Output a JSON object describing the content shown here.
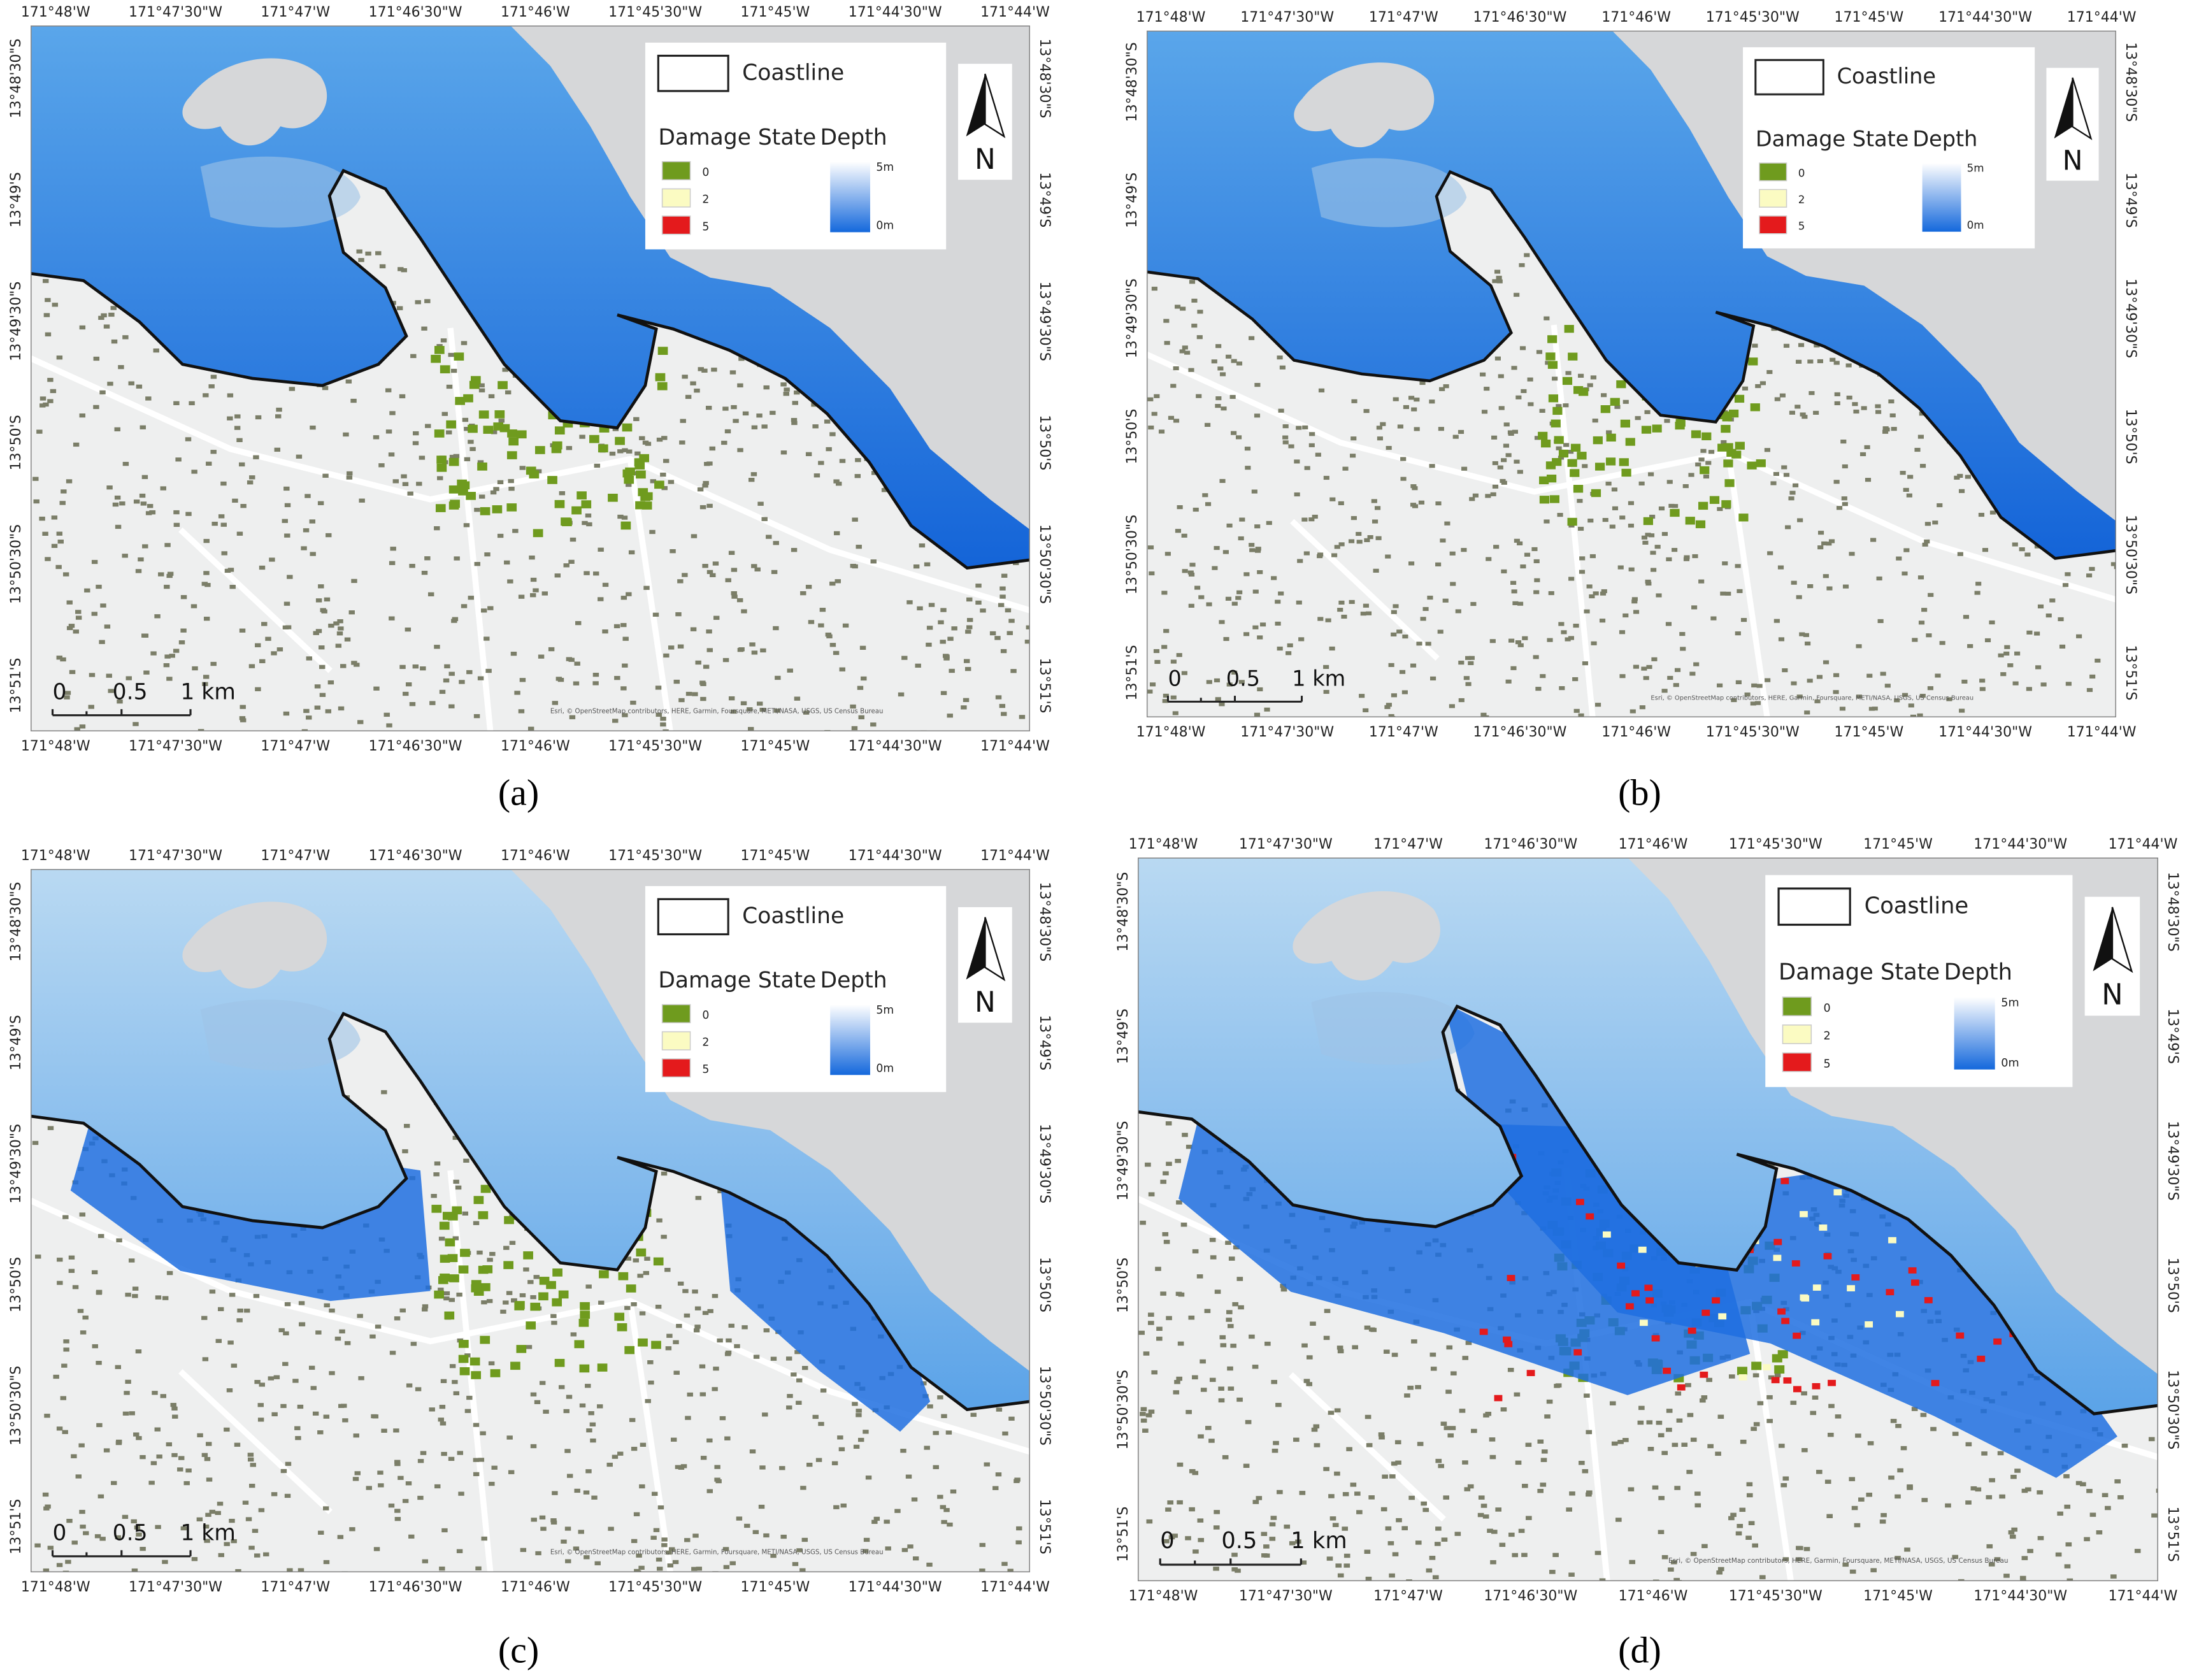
{
  "panels": [
    {
      "caption": "(a)",
      "top_labels": [
        "171°48'W",
        "171°47'30\"W",
        "171°47'W",
        "171°46'30\"W",
        "171°46'W",
        "171°45'30\"W",
        "171°45'W",
        "171°44'30\"W",
        "171°44'W"
      ],
      "bottom_labels": [
        "171°48'W",
        "171°47'30\"W",
        "171°47'W",
        "171°46'30\"W",
        "171°46'W",
        "171°45'30\"W",
        "171°45'W",
        "171°44'30\"W",
        "171°44'W"
      ],
      "left_labels": [
        "13°48'30\"S",
        "13°49'S",
        "13°49'30\"S",
        "13°50'S",
        "13°50'30\"S",
        "13°51'S"
      ],
      "right_labels": [
        "13°48'30\"S",
        "13°49'S",
        "13°49'30\"S",
        "13°50'S",
        "13°50'30\"S",
        "13°51'S"
      ],
      "legend": {
        "coastline": "Coastline",
        "damage_state": "Damage State",
        "depth": "Depth",
        "damage_levels": [
          "0",
          "2",
          "5"
        ],
        "damage_colors": [
          "#6f9b1e",
          "#fbfbc2",
          "#e41a1c"
        ],
        "depth_max": "5m",
        "depth_min": "0m"
      },
      "north": "N",
      "scale_bar": [
        "0",
        "0.5",
        "1 km"
      ],
      "attribution": "Esri, © OpenStreetMap contributors, HERE, Garmin, Foursquare, METI/NASA, USGS, US Census Bureau"
    },
    {
      "caption": "(b)",
      "top_labels": [
        "171°48'W",
        "171°47'30\"W",
        "171°47'W",
        "171°46'30\"W",
        "171°46'W",
        "171°45'30\"W",
        "171°45'W",
        "171°44'30\"W",
        "171°44'W"
      ],
      "bottom_labels": [
        "171°48'W",
        "171°47'30\"W",
        "171°47'W",
        "171°46'30\"W",
        "171°46'W",
        "171°45'30\"W",
        "171°45'W",
        "171°44'30\"W",
        "171°44'W"
      ],
      "left_labels": [
        "13°48'30\"S",
        "13°49'S",
        "13°49'30\"S",
        "13°50'S",
        "13°50'30\"S",
        "13°51'S"
      ],
      "right_labels": [
        "13°48'30\"S",
        "13°49'S",
        "13°49'30\"S",
        "13°50'S",
        "13°50'30\"S",
        "13°51'S"
      ],
      "legend": {
        "coastline": "Coastline",
        "damage_state": "Damage State",
        "depth": "Depth",
        "damage_levels": [
          "0",
          "2",
          "5"
        ],
        "damage_colors": [
          "#6f9b1e",
          "#fbfbc2",
          "#e41a1c"
        ],
        "depth_max": "5m",
        "depth_min": "0m"
      },
      "north": "N",
      "scale_bar": [
        "0",
        "0.5",
        "1 km"
      ],
      "attribution": "Esri, © OpenStreetMap contributors, HERE, Garmin, Foursquare, METI/NASA, USGS, US Census Bureau"
    },
    {
      "caption": "(c)",
      "top_labels": [
        "171°48'W",
        "171°47'30\"W",
        "171°47'W",
        "171°46'30\"W",
        "171°46'W",
        "171°45'30\"W",
        "171°45'W",
        "171°44'30\"W",
        "171°44'W"
      ],
      "bottom_labels": [
        "171°48'W",
        "171°47'30\"W",
        "171°47'W",
        "171°46'30\"W",
        "171°46'W",
        "171°45'30\"W",
        "171°45'W",
        "171°44'30\"W",
        "171°44'W"
      ],
      "left_labels": [
        "13°48'30\"S",
        "13°49'S",
        "13°49'30\"S",
        "13°50'S",
        "13°50'30\"S",
        "13°51'S"
      ],
      "right_labels": [
        "13°48'30\"S",
        "13°49'S",
        "13°49'30\"S",
        "13°50'S",
        "13°50'30\"S",
        "13°51'S"
      ],
      "legend": {
        "coastline": "Coastline",
        "damage_state": "Damage State",
        "depth": "Depth",
        "damage_levels": [
          "0",
          "2",
          "5"
        ],
        "damage_colors": [
          "#6f9b1e",
          "#fbfbc2",
          "#e41a1c"
        ],
        "depth_max": "5m",
        "depth_min": "0m"
      },
      "north": "N",
      "scale_bar": [
        "0",
        "0.5",
        "1 km"
      ],
      "attribution": "Esri, © OpenStreetMap contributors, HERE, Garmin, Foursquare, METI/NASA, USGS, US Census Bureau"
    },
    {
      "caption": "(d)",
      "top_labels": [
        "171°48'W",
        "171°47'30\"W",
        "171°47'W",
        "171°46'30\"W",
        "171°46'W",
        "171°45'30\"W",
        "171°45'W",
        "171°44'30\"W",
        "171°44'W"
      ],
      "bottom_labels": [
        "171°48'W",
        "171°47'30\"W",
        "171°47'W",
        "171°46'30\"W",
        "171°46'W",
        "171°45'30\"W",
        "171°45'W",
        "171°44'30\"W",
        "171°44'W"
      ],
      "left_labels": [
        "13°48'30\"S",
        "13°49'S",
        "13°49'30\"S",
        "13°50'S",
        "13°50'30\"S",
        "13°51'S"
      ],
      "right_labels": [
        "13°48'30\"S",
        "13°49'S",
        "13°49'30\"S",
        "13°50'S",
        "13°50'30\"S",
        "13°51'S"
      ],
      "legend": {
        "coastline": "Coastline",
        "damage_state": "Damage State",
        "depth": "Depth",
        "damage_levels": [
          "0",
          "2",
          "5"
        ],
        "damage_colors": [
          "#6f9b1e",
          "#fbfbc2",
          "#e41a1c"
        ],
        "depth_max": "5m",
        "depth_min": "0m"
      },
      "north": "N",
      "scale_bar": [
        "0",
        "0.5",
        "1 km"
      ],
      "attribution": "Esri, © OpenStreetMap contributors, HERE, Garmin, Foursquare, METI/NASA, USGS, US Census Bureau"
    }
  ]
}
